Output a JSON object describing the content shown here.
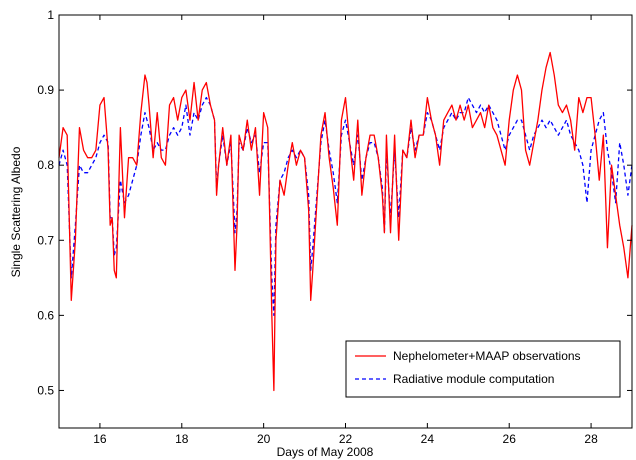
{
  "chart_data": {
    "type": "line",
    "title": "",
    "xlabel": "Days of May 2008",
    "ylabel": "Single Scattering Albedo",
    "xlim": [
      15,
      29
    ],
    "ylim": [
      0.45,
      1.0
    ],
    "xticks": [
      16,
      18,
      20,
      22,
      24,
      26,
      28
    ],
    "xtick_labels": [
      "16",
      "18",
      "20",
      "22",
      "24",
      "26",
      "28"
    ],
    "yticks": [
      0.5,
      0.6,
      0.7,
      0.8,
      0.9,
      1.0
    ],
    "ytick_labels": [
      "0.5",
      "0.6",
      "0.7",
      "0.8",
      "0.9",
      "1"
    ],
    "grid": false,
    "legend_position": "bottom-right",
    "series": [
      {
        "name": "Nephelometer+MAAP observations",
        "color": "#ff0000",
        "style": "solid",
        "x": [
          15.0,
          15.1,
          15.2,
          15.3,
          15.4,
          15.5,
          15.6,
          15.7,
          15.8,
          15.9,
          16.0,
          16.1,
          16.2,
          16.25,
          16.3,
          16.35,
          16.4,
          16.5,
          16.6,
          16.7,
          16.8,
          16.9,
          17.0,
          17.1,
          17.15,
          17.2,
          17.3,
          17.4,
          17.5,
          17.6,
          17.7,
          17.8,
          17.9,
          18.0,
          18.1,
          18.2,
          18.3,
          18.4,
          18.5,
          18.6,
          18.7,
          18.8,
          18.85,
          18.9,
          19.0,
          19.1,
          19.2,
          19.3,
          19.35,
          19.4,
          19.5,
          19.6,
          19.7,
          19.8,
          19.9,
          20.0,
          20.1,
          20.2,
          20.25,
          20.3,
          20.4,
          20.5,
          20.6,
          20.7,
          20.8,
          20.9,
          21.0,
          21.1,
          21.15,
          21.2,
          21.3,
          21.4,
          21.5,
          21.6,
          21.7,
          21.8,
          21.9,
          22.0,
          22.1,
          22.2,
          22.3,
          22.4,
          22.5,
          22.6,
          22.7,
          22.8,
          22.9,
          22.95,
          23.0,
          23.1,
          23.2,
          23.3,
          23.4,
          23.5,
          23.6,
          23.7,
          23.8,
          23.9,
          24.0,
          24.1,
          24.2,
          24.3,
          24.4,
          24.5,
          24.6,
          24.7,
          24.8,
          24.9,
          25.0,
          25.1,
          25.2,
          25.3,
          25.4,
          25.5,
          25.6,
          25.7,
          25.8,
          25.9,
          26.0,
          26.1,
          26.2,
          26.3,
          26.4,
          26.5,
          26.6,
          26.7,
          26.8,
          26.9,
          27.0,
          27.1,
          27.2,
          27.3,
          27.4,
          27.5,
          27.6,
          27.7,
          27.8,
          27.9,
          28.0,
          28.1,
          28.2,
          28.3,
          28.4,
          28.5,
          28.6,
          28.7,
          28.8,
          28.9,
          29.0
        ],
        "values": [
          0.81,
          0.85,
          0.84,
          0.62,
          0.7,
          0.85,
          0.82,
          0.81,
          0.81,
          0.82,
          0.88,
          0.89,
          0.82,
          0.72,
          0.73,
          0.66,
          0.65,
          0.85,
          0.73,
          0.81,
          0.81,
          0.8,
          0.87,
          0.92,
          0.91,
          0.88,
          0.81,
          0.87,
          0.81,
          0.8,
          0.88,
          0.89,
          0.86,
          0.89,
          0.9,
          0.86,
          0.91,
          0.86,
          0.9,
          0.91,
          0.88,
          0.86,
          0.76,
          0.8,
          0.85,
          0.8,
          0.84,
          0.66,
          0.72,
          0.84,
          0.82,
          0.86,
          0.82,
          0.85,
          0.76,
          0.87,
          0.85,
          0.6,
          0.5,
          0.7,
          0.78,
          0.76,
          0.8,
          0.83,
          0.8,
          0.82,
          0.81,
          0.74,
          0.62,
          0.66,
          0.75,
          0.84,
          0.87,
          0.81,
          0.77,
          0.72,
          0.86,
          0.89,
          0.83,
          0.78,
          0.86,
          0.76,
          0.81,
          0.84,
          0.84,
          0.81,
          0.76,
          0.71,
          0.84,
          0.71,
          0.84,
          0.7,
          0.82,
          0.81,
          0.86,
          0.81,
          0.84,
          0.84,
          0.89,
          0.86,
          0.84,
          0.8,
          0.86,
          0.87,
          0.88,
          0.86,
          0.88,
          0.86,
          0.88,
          0.85,
          0.86,
          0.87,
          0.85,
          0.88,
          0.85,
          0.84,
          0.82,
          0.8,
          0.86,
          0.9,
          0.92,
          0.9,
          0.82,
          0.8,
          0.83,
          0.86,
          0.9,
          0.93,
          0.95,
          0.92,
          0.88,
          0.87,
          0.88,
          0.86,
          0.82,
          0.89,
          0.87,
          0.89,
          0.89,
          0.84,
          0.78,
          0.84,
          0.69,
          0.8,
          0.76,
          0.72,
          0.69,
          0.65,
          0.72
        ]
      },
      {
        "name": "Radiative module computation",
        "color": "#0000ff",
        "style": "dashed",
        "x": [
          15.0,
          15.1,
          15.2,
          15.3,
          15.4,
          15.5,
          15.6,
          15.7,
          15.8,
          15.9,
          16.0,
          16.1,
          16.2,
          16.25,
          16.3,
          16.35,
          16.4,
          16.5,
          16.6,
          16.7,
          16.8,
          16.9,
          17.0,
          17.1,
          17.15,
          17.2,
          17.3,
          17.4,
          17.5,
          17.6,
          17.7,
          17.8,
          17.9,
          18.0,
          18.1,
          18.2,
          18.3,
          18.4,
          18.5,
          18.6,
          18.7,
          18.8,
          18.85,
          18.9,
          19.0,
          19.1,
          19.2,
          19.3,
          19.35,
          19.4,
          19.5,
          19.6,
          19.7,
          19.8,
          19.9,
          20.0,
          20.1,
          20.2,
          20.25,
          20.3,
          20.4,
          20.5,
          20.6,
          20.7,
          20.8,
          20.9,
          21.0,
          21.1,
          21.15,
          21.2,
          21.3,
          21.4,
          21.5,
          21.6,
          21.7,
          21.8,
          21.9,
          22.0,
          22.1,
          22.2,
          22.3,
          22.4,
          22.5,
          22.6,
          22.7,
          22.8,
          22.9,
          22.95,
          23.0,
          23.1,
          23.2,
          23.3,
          23.4,
          23.5,
          23.6,
          23.7,
          23.8,
          23.9,
          24.0,
          24.1,
          24.2,
          24.3,
          24.4,
          24.5,
          24.6,
          24.7,
          24.8,
          24.9,
          25.0,
          25.1,
          25.2,
          25.3,
          25.4,
          25.5,
          25.6,
          25.7,
          25.8,
          25.9,
          26.0,
          26.1,
          26.2,
          26.3,
          26.4,
          26.5,
          26.6,
          26.7,
          26.8,
          26.9,
          27.0,
          27.1,
          27.2,
          27.3,
          27.4,
          27.5,
          27.6,
          27.7,
          27.8,
          27.9,
          28.0,
          28.1,
          28.2,
          28.3,
          28.4,
          28.5,
          28.6,
          28.7,
          28.8,
          28.9,
          29.0
        ],
        "values": [
          0.8,
          0.82,
          0.8,
          0.65,
          0.72,
          0.8,
          0.79,
          0.79,
          0.8,
          0.81,
          0.83,
          0.84,
          0.83,
          0.73,
          0.73,
          0.68,
          0.69,
          0.78,
          0.75,
          0.76,
          0.78,
          0.8,
          0.84,
          0.87,
          0.86,
          0.85,
          0.82,
          0.83,
          0.82,
          0.82,
          0.84,
          0.85,
          0.84,
          0.85,
          0.88,
          0.84,
          0.87,
          0.86,
          0.88,
          0.89,
          0.88,
          0.86,
          0.77,
          0.8,
          0.84,
          0.8,
          0.83,
          0.71,
          0.74,
          0.83,
          0.82,
          0.85,
          0.83,
          0.84,
          0.79,
          0.83,
          0.83,
          0.65,
          0.6,
          0.72,
          0.78,
          0.79,
          0.81,
          0.82,
          0.81,
          0.82,
          0.81,
          0.76,
          0.66,
          0.69,
          0.76,
          0.83,
          0.86,
          0.82,
          0.79,
          0.75,
          0.84,
          0.86,
          0.83,
          0.8,
          0.84,
          0.78,
          0.81,
          0.83,
          0.83,
          0.81,
          0.77,
          0.71,
          0.82,
          0.73,
          0.82,
          0.73,
          0.82,
          0.81,
          0.85,
          0.82,
          0.84,
          0.84,
          0.87,
          0.86,
          0.84,
          0.82,
          0.85,
          0.86,
          0.87,
          0.86,
          0.87,
          0.87,
          0.89,
          0.88,
          0.87,
          0.88,
          0.87,
          0.88,
          0.87,
          0.86,
          0.84,
          0.82,
          0.84,
          0.85,
          0.86,
          0.86,
          0.84,
          0.82,
          0.84,
          0.85,
          0.86,
          0.85,
          0.86,
          0.85,
          0.84,
          0.85,
          0.86,
          0.84,
          0.83,
          0.82,
          0.8,
          0.75,
          0.82,
          0.84,
          0.86,
          0.87,
          0.82,
          0.79,
          0.75,
          0.83,
          0.8,
          0.76,
          0.8
        ]
      }
    ]
  }
}
